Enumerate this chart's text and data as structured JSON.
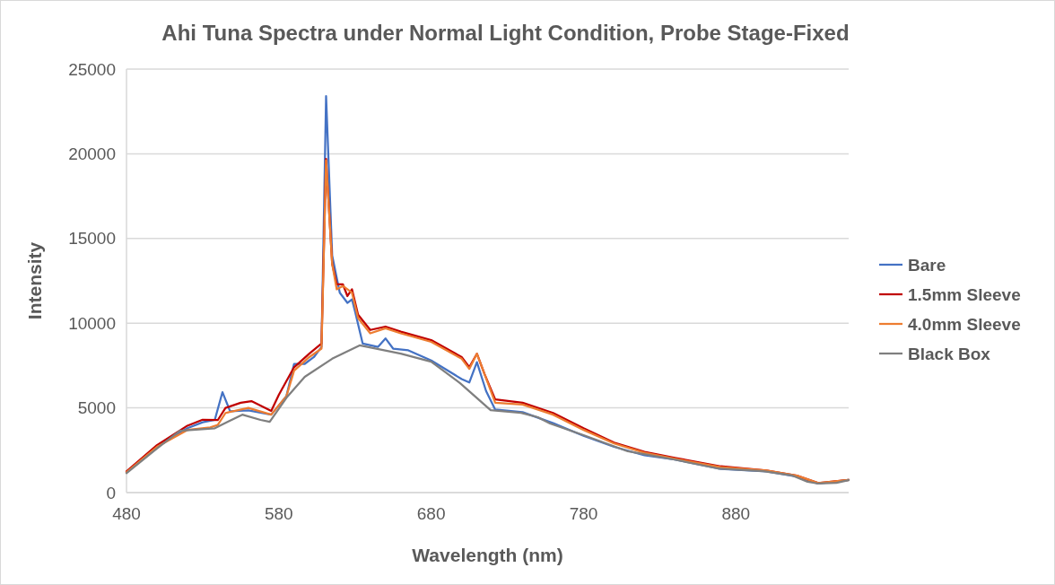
{
  "chart_data": {
    "type": "line",
    "title": "Ahi Tuna Spectra under Normal Light Condition, Probe Stage-Fixed",
    "xlabel": "Wavelength (nm)",
    "ylabel": "Intensity",
    "xlim": [
      480,
      954
    ],
    "xticks": [
      480,
      580,
      680,
      780,
      880
    ],
    "ylim": [
      0,
      25000
    ],
    "yticks": [
      0,
      5000,
      10000,
      15000,
      20000,
      25000
    ],
    "grid": "y",
    "legend": "right",
    "marker": "none",
    "line_style": "solid",
    "series": [
      {
        "name": "Bare",
        "color": "#4472c4",
        "x": [
          480,
          500,
          520,
          530,
          538,
          543,
          548,
          560,
          575,
          585,
          590,
          597,
          603,
          608,
          611,
          615,
          620,
          625,
          628,
          630,
          635,
          645,
          650,
          655,
          665,
          680,
          700,
          705,
          710,
          716,
          722,
          740,
          760,
          780,
          800,
          820,
          840,
          870,
          900,
          920,
          934,
          954
        ],
        "values": [
          1200,
          2750,
          3800,
          4150,
          4300,
          5930,
          4800,
          4850,
          4600,
          5700,
          7600,
          7600,
          8000,
          8600,
          23400,
          14000,
          11800,
          11200,
          11400,
          10700,
          8800,
          8600,
          9100,
          8500,
          8400,
          7800,
          6700,
          6500,
          7700,
          6000,
          4900,
          4750,
          4100,
          3350,
          2700,
          2200,
          1950,
          1400,
          1250,
          950,
          530,
          750
        ]
      },
      {
        "name": "1.5mm Sleeve",
        "color": "#c00000",
        "x": [
          480,
          500,
          520,
          530,
          540,
          545,
          555,
          562,
          575,
          580,
          590,
          600,
          608,
          611,
          615,
          618,
          622,
          625,
          628,
          632,
          640,
          650,
          660,
          680,
          700,
          705,
          710,
          715,
          722,
          740,
          760,
          780,
          800,
          820,
          840,
          870,
          900,
          920,
          934,
          954
        ],
        "values": [
          1250,
          2800,
          3950,
          4300,
          4290,
          5000,
          5300,
          5400,
          4820,
          5770,
          7400,
          8200,
          8800,
          19700,
          13500,
          12300,
          12300,
          11600,
          12000,
          10500,
          9600,
          9800,
          9500,
          9000,
          8000,
          7400,
          8200,
          7000,
          5500,
          5300,
          4700,
          3800,
          2950,
          2400,
          2050,
          1550,
          1300,
          1000,
          560,
          750
        ]
      },
      {
        "name": "4.0mm Sleeve",
        "color": "#ed7d31",
        "x": [
          480,
          500,
          520,
          535,
          540,
          545,
          560,
          575,
          585,
          590,
          600,
          608,
          611,
          615,
          618,
          622,
          628,
          632,
          640,
          650,
          660,
          680,
          700,
          705,
          710,
          715,
          722,
          740,
          760,
          780,
          800,
          820,
          840,
          870,
          900,
          920,
          934,
          954
        ],
        "values": [
          1200,
          2700,
          3700,
          3850,
          4000,
          4700,
          5000,
          4600,
          5700,
          7200,
          8000,
          8500,
          19600,
          13500,
          12000,
          12200,
          11800,
          10300,
          9400,
          9700,
          9400,
          8900,
          7900,
          7300,
          8200,
          7000,
          5300,
          5200,
          4600,
          3700,
          2900,
          2350,
          2000,
          1500,
          1300,
          1000,
          560,
          750
        ]
      },
      {
        "name": "Black Box",
        "color": "#7f7f7f",
        "x": [
          480,
          500,
          515,
          538,
          556,
          568,
          574,
          585,
          597,
          615,
          633,
          660,
          680,
          699,
          719,
          739,
          750,
          758,
          780,
          809,
          839,
          868,
          898,
          917,
          927,
          934,
          946,
          954
        ],
        "values": [
          1150,
          2600,
          3650,
          3800,
          4600,
          4290,
          4180,
          5600,
          6830,
          7900,
          8690,
          8200,
          7730,
          6460,
          4870,
          4710,
          4450,
          4080,
          3390,
          2440,
          1960,
          1430,
          1270,
          1010,
          640,
          530,
          580,
          740
        ]
      }
    ]
  }
}
